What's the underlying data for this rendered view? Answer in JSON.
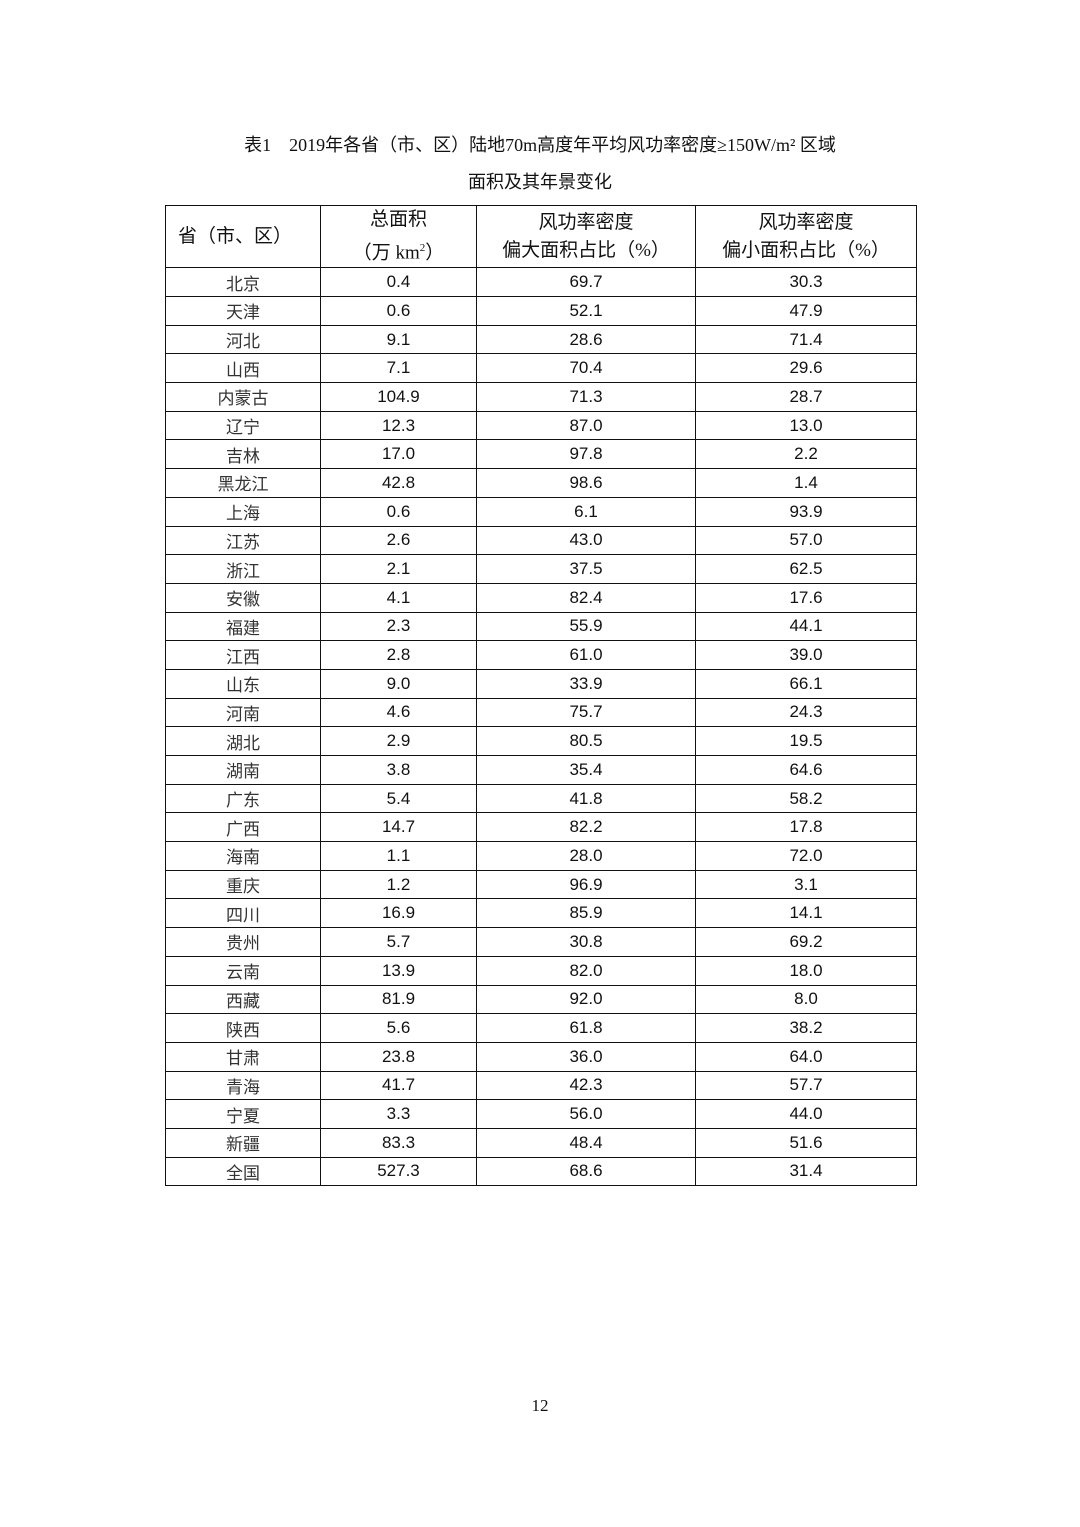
{
  "title": {
    "line1": "表1　2019年各省（市、区）陆地70m高度年平均风功率密度≥150W/m² 区域",
    "line2": "面积及其年景变化"
  },
  "table": {
    "headers": {
      "province": "省（市、区）",
      "area_line1": "总面积",
      "area_line2_prefix": "（万 km",
      "area_line2_sup": "2",
      "area_line2_suffix": "）",
      "high_line1": "风功率密度",
      "high_line2": "偏大面积占比（%）",
      "low_line1": "风功率密度",
      "low_line2": "偏小面积占比（%）"
    },
    "rows": [
      [
        "北京",
        "0.4",
        "69.7",
        "30.3"
      ],
      [
        "天津",
        "0.6",
        "52.1",
        "47.9"
      ],
      [
        "河北",
        "9.1",
        "28.6",
        "71.4"
      ],
      [
        "山西",
        "7.1",
        "70.4",
        "29.6"
      ],
      [
        "内蒙古",
        "104.9",
        "71.3",
        "28.7"
      ],
      [
        "辽宁",
        "12.3",
        "87.0",
        "13.0"
      ],
      [
        "吉林",
        "17.0",
        "97.8",
        "2.2"
      ],
      [
        "黑龙江",
        "42.8",
        "98.6",
        "1.4"
      ],
      [
        "上海",
        "0.6",
        "6.1",
        "93.9"
      ],
      [
        "江苏",
        "2.6",
        "43.0",
        "57.0"
      ],
      [
        "浙江",
        "2.1",
        "37.5",
        "62.5"
      ],
      [
        "安徽",
        "4.1",
        "82.4",
        "17.6"
      ],
      [
        "福建",
        "2.3",
        "55.9",
        "44.1"
      ],
      [
        "江西",
        "2.8",
        "61.0",
        "39.0"
      ],
      [
        "山东",
        "9.0",
        "33.9",
        "66.1"
      ],
      [
        "河南",
        "4.6",
        "75.7",
        "24.3"
      ],
      [
        "湖北",
        "2.9",
        "80.5",
        "19.5"
      ],
      [
        "湖南",
        "3.8",
        "35.4",
        "64.6"
      ],
      [
        "广东",
        "5.4",
        "41.8",
        "58.2"
      ],
      [
        "广西",
        "14.7",
        "82.2",
        "17.8"
      ],
      [
        "海南",
        "1.1",
        "28.0",
        "72.0"
      ],
      [
        "重庆",
        "1.2",
        "96.9",
        "3.1"
      ],
      [
        "四川",
        "16.9",
        "85.9",
        "14.1"
      ],
      [
        "贵州",
        "5.7",
        "30.8",
        "69.2"
      ],
      [
        "云南",
        "13.9",
        "82.0",
        "18.0"
      ],
      [
        "西藏",
        "81.9",
        "92.0",
        "8.0"
      ],
      [
        "陕西",
        "5.6",
        "61.8",
        "38.2"
      ],
      [
        "甘肃",
        "23.8",
        "36.0",
        "64.0"
      ],
      [
        "青海",
        "41.7",
        "42.3",
        "57.7"
      ],
      [
        "宁夏",
        "3.3",
        "56.0",
        "44.0"
      ],
      [
        "新疆",
        "83.3",
        "48.4",
        "51.6"
      ],
      [
        "全国",
        "527.3",
        "68.6",
        "31.4"
      ]
    ]
  },
  "page_number": "12"
}
